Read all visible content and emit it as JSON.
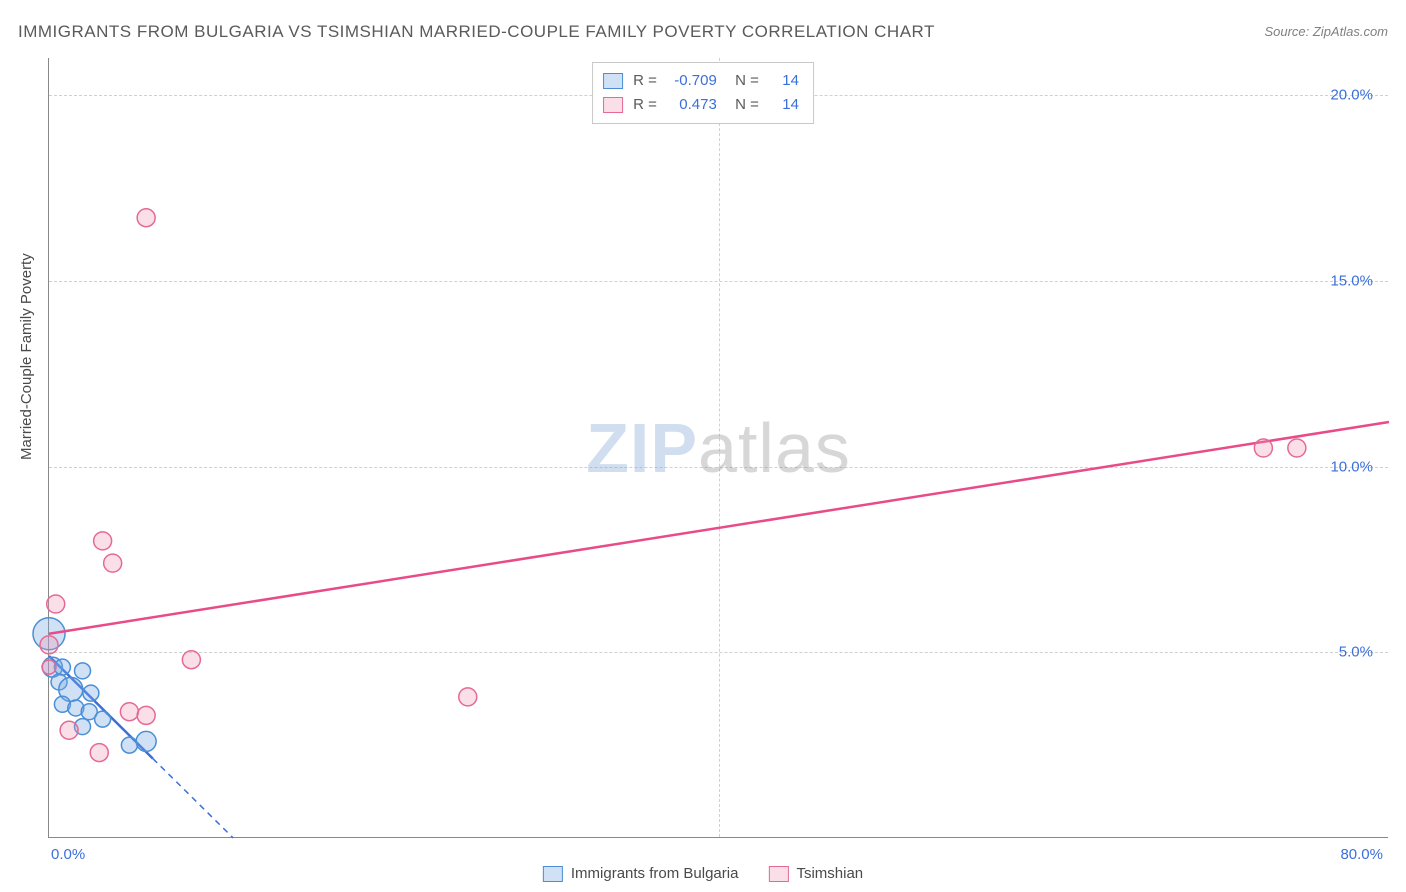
{
  "title": "IMMIGRANTS FROM BULGARIA VS TSIMSHIAN MARRIED-COUPLE FAMILY POVERTY CORRELATION CHART",
  "source": "Source: ZipAtlas.com",
  "y_axis_title": "Married-Couple Family Poverty",
  "watermark": {
    "part1": "ZIP",
    "part2": "atlas"
  },
  "chart": {
    "type": "scatter",
    "xlim": [
      0,
      80
    ],
    "ylim": [
      0,
      21
    ],
    "x_ticks": [
      {
        "value": 0,
        "label": "0.0%"
      },
      {
        "value": 80,
        "label": "80.0%"
      }
    ],
    "y_ticks": [
      {
        "value": 5,
        "label": "5.0%"
      },
      {
        "value": 10,
        "label": "10.0%"
      },
      {
        "value": 15,
        "label": "15.0%"
      },
      {
        "value": 20,
        "label": "20.0%"
      }
    ],
    "grid_h_values": [
      5,
      10,
      15,
      20
    ],
    "grid_v_values": [
      40
    ],
    "background_color": "#ffffff",
    "grid_color": "#d0d0d0",
    "axis_color": "#888888",
    "label_fontsize": 15,
    "label_color": "#3b6fd9",
    "series": [
      {
        "name": "Immigrants from Bulgaria",
        "fill_color": "rgba(120,170,230,0.35)",
        "stroke_color": "#4a8fd6",
        "line_color": "#3b6fd9",
        "R": "-0.709",
        "N": "14",
        "points": [
          {
            "x": 0.0,
            "y": 5.5,
            "r": 16
          },
          {
            "x": 0.2,
            "y": 4.6,
            "r": 10
          },
          {
            "x": 0.8,
            "y": 4.6,
            "r": 8
          },
          {
            "x": 2.0,
            "y": 4.5,
            "r": 8
          },
          {
            "x": 0.6,
            "y": 4.2,
            "r": 8
          },
          {
            "x": 1.3,
            "y": 4.0,
            "r": 12
          },
          {
            "x": 2.5,
            "y": 3.9,
            "r": 8
          },
          {
            "x": 0.8,
            "y": 3.6,
            "r": 8
          },
          {
            "x": 1.6,
            "y": 3.5,
            "r": 8
          },
          {
            "x": 2.4,
            "y": 3.4,
            "r": 8
          },
          {
            "x": 3.2,
            "y": 3.2,
            "r": 8
          },
          {
            "x": 2.0,
            "y": 3.0,
            "r": 8
          },
          {
            "x": 5.8,
            "y": 2.6,
            "r": 10
          },
          {
            "x": 4.8,
            "y": 2.5,
            "r": 8
          }
        ],
        "trend": {
          "x1": 0,
          "y1": 4.9,
          "x2": 11,
          "y2": 0,
          "dash_after_x": 6.2
        }
      },
      {
        "name": "Tsimshian",
        "fill_color": "rgba(240,150,180,0.30)",
        "stroke_color": "#e46a94",
        "line_color": "#e84b86",
        "R": "0.473",
        "N": "14",
        "points": [
          {
            "x": 5.8,
            "y": 16.7,
            "r": 9
          },
          {
            "x": 72.5,
            "y": 10.5,
            "r": 9
          },
          {
            "x": 74.5,
            "y": 10.5,
            "r": 9
          },
          {
            "x": 3.2,
            "y": 8.0,
            "r": 9
          },
          {
            "x": 3.8,
            "y": 7.4,
            "r": 9
          },
          {
            "x": 0.4,
            "y": 6.3,
            "r": 9
          },
          {
            "x": 0.0,
            "y": 5.2,
            "r": 9
          },
          {
            "x": 8.5,
            "y": 4.8,
            "r": 9
          },
          {
            "x": 0.0,
            "y": 4.6,
            "r": 7
          },
          {
            "x": 25.0,
            "y": 3.8,
            "r": 9
          },
          {
            "x": 4.8,
            "y": 3.4,
            "r": 9
          },
          {
            "x": 5.8,
            "y": 3.3,
            "r": 9
          },
          {
            "x": 1.2,
            "y": 2.9,
            "r": 9
          },
          {
            "x": 3.0,
            "y": 2.3,
            "r": 9
          }
        ],
        "trend": {
          "x1": 0,
          "y1": 5.5,
          "x2": 80,
          "y2": 11.2
        }
      }
    ]
  },
  "legend_bottom": [
    {
      "label": "Immigrants from Bulgaria",
      "series": 0
    },
    {
      "label": "Tsimshian",
      "series": 1
    }
  ]
}
